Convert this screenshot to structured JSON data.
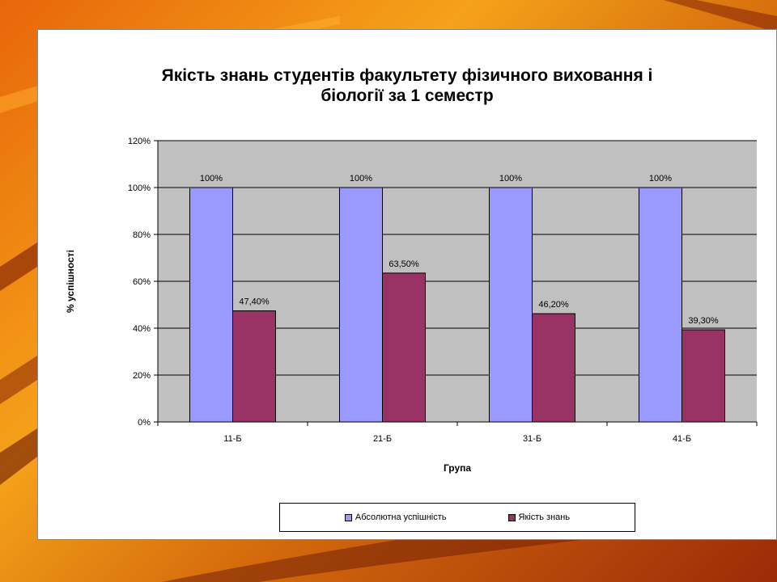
{
  "colors": {
    "plot_background": "#c0c0c0",
    "series_1": "#9999ff",
    "series_2": "#993366"
  },
  "chart_data": {
    "type": "bar",
    "title_lines": [
      "Якість знань студентів факультету фізичного виховання і",
      "біології за 1 семестр"
    ],
    "xlabel": "Група",
    "ylabel": "% успішності",
    "categories": [
      "11-Б",
      "21-Б",
      "31-Б",
      "41-Б"
    ],
    "ylim": [
      0,
      120
    ],
    "yticks": [
      0,
      20,
      40,
      60,
      80,
      100,
      120
    ],
    "ytick_labels": [
      "0%",
      "20%",
      "40%",
      "60%",
      "80%",
      "100%",
      "120%"
    ],
    "grid": true,
    "legend_position": "bottom",
    "series": [
      {
        "name": "Абсолютна успішність",
        "values": [
          100,
          100,
          100,
          100
        ],
        "labels": [
          "100%",
          "100%",
          "100%",
          "100%"
        ]
      },
      {
        "name": "Якість знань",
        "values": [
          47.4,
          63.5,
          46.2,
          39.3
        ],
        "labels": [
          "47,40%",
          "63,50%",
          "46,20%",
          "39,30%"
        ]
      }
    ]
  }
}
